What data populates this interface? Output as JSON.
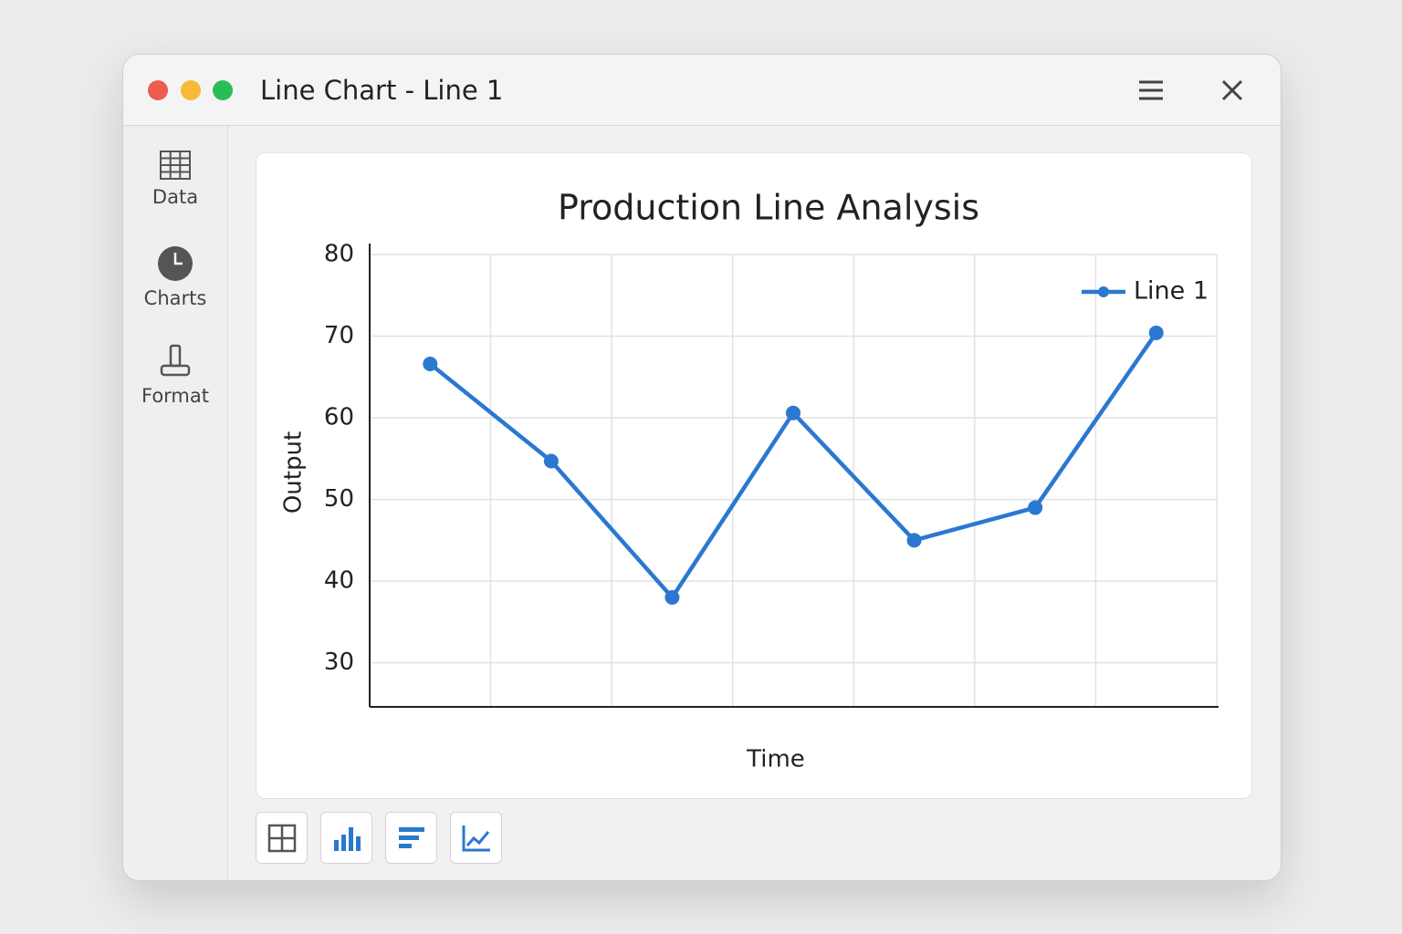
{
  "window": {
    "title": "Line Chart - Line 1"
  },
  "sidebar": {
    "items": [
      "Data",
      "Charts",
      "Format"
    ]
  },
  "chart_data": {
    "type": "line",
    "title": "Production Line Analysis",
    "x_label": "Time",
    "y_label": "Output",
    "categories": [
      null,
      null,
      null,
      null,
      null,
      null,
      null
    ],
    "series": [
      {
        "name": "Line 1",
        "color": "#2a78d0",
        "values": [
          66.6,
          54.7,
          38,
          60.6,
          45,
          49,
          70.4
        ]
      }
    ],
    "ylim": [
      24.6,
      80
    ],
    "yticks": [
      30,
      40,
      50,
      60,
      70,
      80
    ],
    "grid": true,
    "legend": "upper-right"
  }
}
